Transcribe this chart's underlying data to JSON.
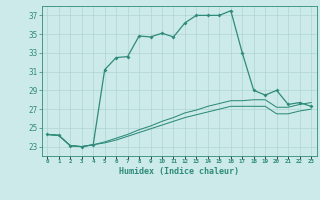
{
  "xlabel": "Humidex (Indice chaleur)",
  "x": [
    0,
    1,
    2,
    3,
    4,
    5,
    6,
    7,
    8,
    9,
    10,
    11,
    12,
    13,
    14,
    15,
    16,
    17,
    18,
    19,
    20,
    21,
    22,
    23
  ],
  "y_main": [
    24.3,
    24.2,
    23.1,
    23.0,
    23.2,
    31.2,
    32.5,
    32.6,
    34.8,
    34.7,
    35.1,
    34.7,
    36.2,
    37.0,
    37.0,
    37.0,
    37.5,
    33.0,
    29.0,
    28.5,
    29.0,
    27.5,
    27.7,
    27.3
  ],
  "y_low": [
    24.3,
    24.2,
    23.1,
    23.0,
    23.2,
    23.4,
    23.7,
    24.1,
    24.5,
    24.9,
    25.3,
    25.7,
    26.1,
    26.4,
    26.7,
    27.0,
    27.3,
    27.3,
    27.3,
    27.3,
    26.5,
    26.5,
    26.8,
    27.0
  ],
  "y_high": [
    24.3,
    24.2,
    23.1,
    23.0,
    23.2,
    23.5,
    23.9,
    24.3,
    24.8,
    25.2,
    25.7,
    26.1,
    26.6,
    26.9,
    27.3,
    27.6,
    27.9,
    27.9,
    28.0,
    28.0,
    27.2,
    27.2,
    27.5,
    27.7
  ],
  "line_color": "#2e8b7a",
  "bg_color": "#cdeaea",
  "grid_color": "#afd4d4",
  "ylim": [
    22.0,
    38.0
  ],
  "yticks": [
    23,
    25,
    27,
    29,
    31,
    33,
    35,
    37
  ],
  "xlim": [
    -0.5,
    23.5
  ],
  "xticks": [
    0,
    1,
    2,
    3,
    4,
    5,
    6,
    7,
    8,
    9,
    10,
    11,
    12,
    13,
    14,
    15,
    16,
    17,
    18,
    19,
    20,
    21,
    22,
    23
  ]
}
